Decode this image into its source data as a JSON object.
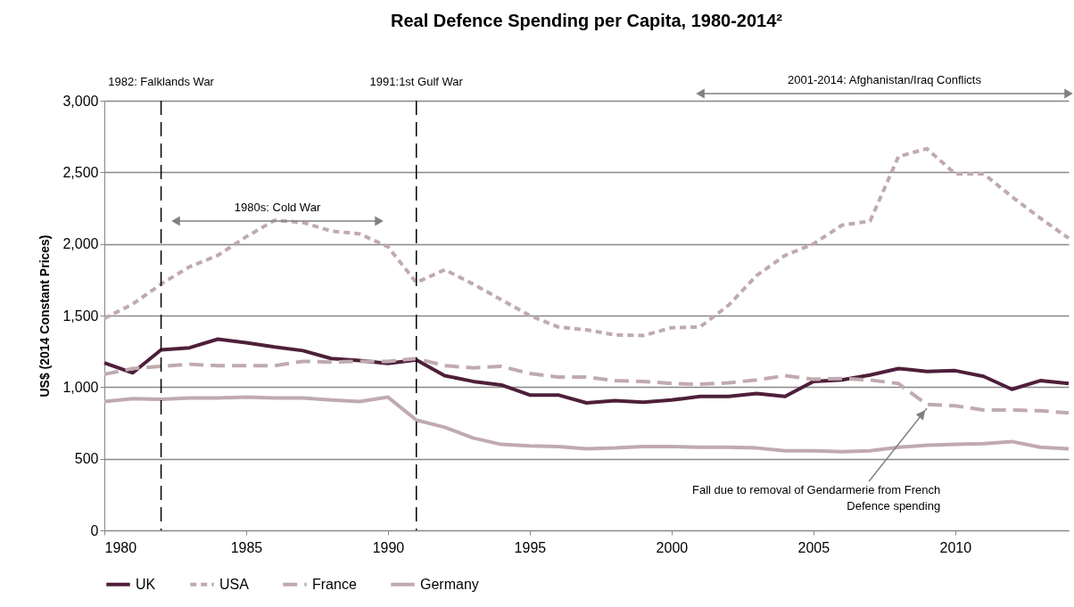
{
  "chart_data": {
    "type": "line",
    "title": "Real Defence Spending per Capita, 1980-2014²",
    "ylabel": "US$ (2014 Constant Prices)",
    "x": [
      1980,
      1981,
      1982,
      1983,
      1984,
      1985,
      1986,
      1987,
      1988,
      1989,
      1990,
      1991,
      1992,
      1993,
      1994,
      1995,
      1996,
      1997,
      1998,
      1999,
      2000,
      2001,
      2002,
      2003,
      2004,
      2005,
      2006,
      2007,
      2008,
      2009,
      2010,
      2011,
      2012,
      2013,
      2014
    ],
    "series": [
      {
        "name": "UK",
        "color": "#4e1f3a",
        "line_style": "solid",
        "values": [
          1170,
          1100,
          1260,
          1275,
          1335,
          1310,
          1280,
          1255,
          1200,
          1185,
          1165,
          1190,
          1080,
          1040,
          1015,
          945,
          945,
          890,
          905,
          895,
          910,
          935,
          935,
          955,
          935,
          1040,
          1050,
          1085,
          1130,
          1110,
          1115,
          1075,
          985,
          1045,
          1025
        ]
      },
      {
        "name": "USA",
        "color": "#c0aab0",
        "line_style": "dotted",
        "values": [
          1480,
          1580,
          1720,
          1840,
          1920,
          2050,
          2165,
          2150,
          2090,
          2070,
          1980,
          1730,
          1820,
          1720,
          1610,
          1500,
          1420,
          1400,
          1365,
          1360,
          1415,
          1420,
          1570,
          1780,
          1920,
          2000,
          2130,
          2160,
          2610,
          2665,
          2490,
          2490,
          2330,
          2180,
          2040
        ]
      },
      {
        "name": "France",
        "color": "#c0aab0",
        "line_style": "dashed",
        "values": [
          1090,
          1130,
          1145,
          1160,
          1150,
          1150,
          1150,
          1180,
          1175,
          1180,
          1180,
          1200,
          1150,
          1135,
          1145,
          1095,
          1070,
          1070,
          1045,
          1040,
          1025,
          1020,
          1030,
          1050,
          1080,
          1055,
          1060,
          1050,
          1025,
          880,
          870,
          840,
          840,
          835,
          820
        ]
      },
      {
        "name": "Germany",
        "color": "#c0aab0",
        "line_style": "solid",
        "values": [
          900,
          920,
          915,
          925,
          925,
          930,
          925,
          925,
          910,
          900,
          930,
          770,
          720,
          645,
          600,
          590,
          585,
          570,
          575,
          585,
          585,
          580,
          580,
          575,
          555,
          555,
          550,
          555,
          580,
          595,
          600,
          605,
          620,
          580,
          570
        ]
      }
    ],
    "xlim": [
      1980,
      2014
    ],
    "xticks": [
      1980,
      1985,
      1990,
      1995,
      2000,
      2005,
      2010
    ],
    "ylim": [
      0,
      3000
    ],
    "yticks": [
      0,
      500,
      {
        "value": 1000,
        "label": "1,000"
      },
      {
        "value": 1500,
        "label": "1,500"
      },
      {
        "value": 2000,
        "label": "2,000"
      },
      {
        "value": 2500,
        "label": "2,500"
      },
      {
        "value": 3000,
        "label": "3,000"
      }
    ],
    "grid": "y",
    "legend": "bottom",
    "ref_lines": [
      {
        "axis": "x",
        "value": 1982,
        "label": "1982: Falklands War",
        "color": "#000000",
        "line_style": "dashed"
      },
      {
        "axis": "x",
        "value": 1991,
        "label": "1991:1st Gulf War",
        "color": "#000000",
        "line_style": "dashed"
      }
    ],
    "annotations": [
      "1980s: Cold War",
      "2001-2014: Afghanistan/Iraq Conflicts",
      {
        "text": "Fall due to removal of Gendarmerie from French Defence spending",
        "x": 2009,
        "y": 852
      }
    ]
  }
}
